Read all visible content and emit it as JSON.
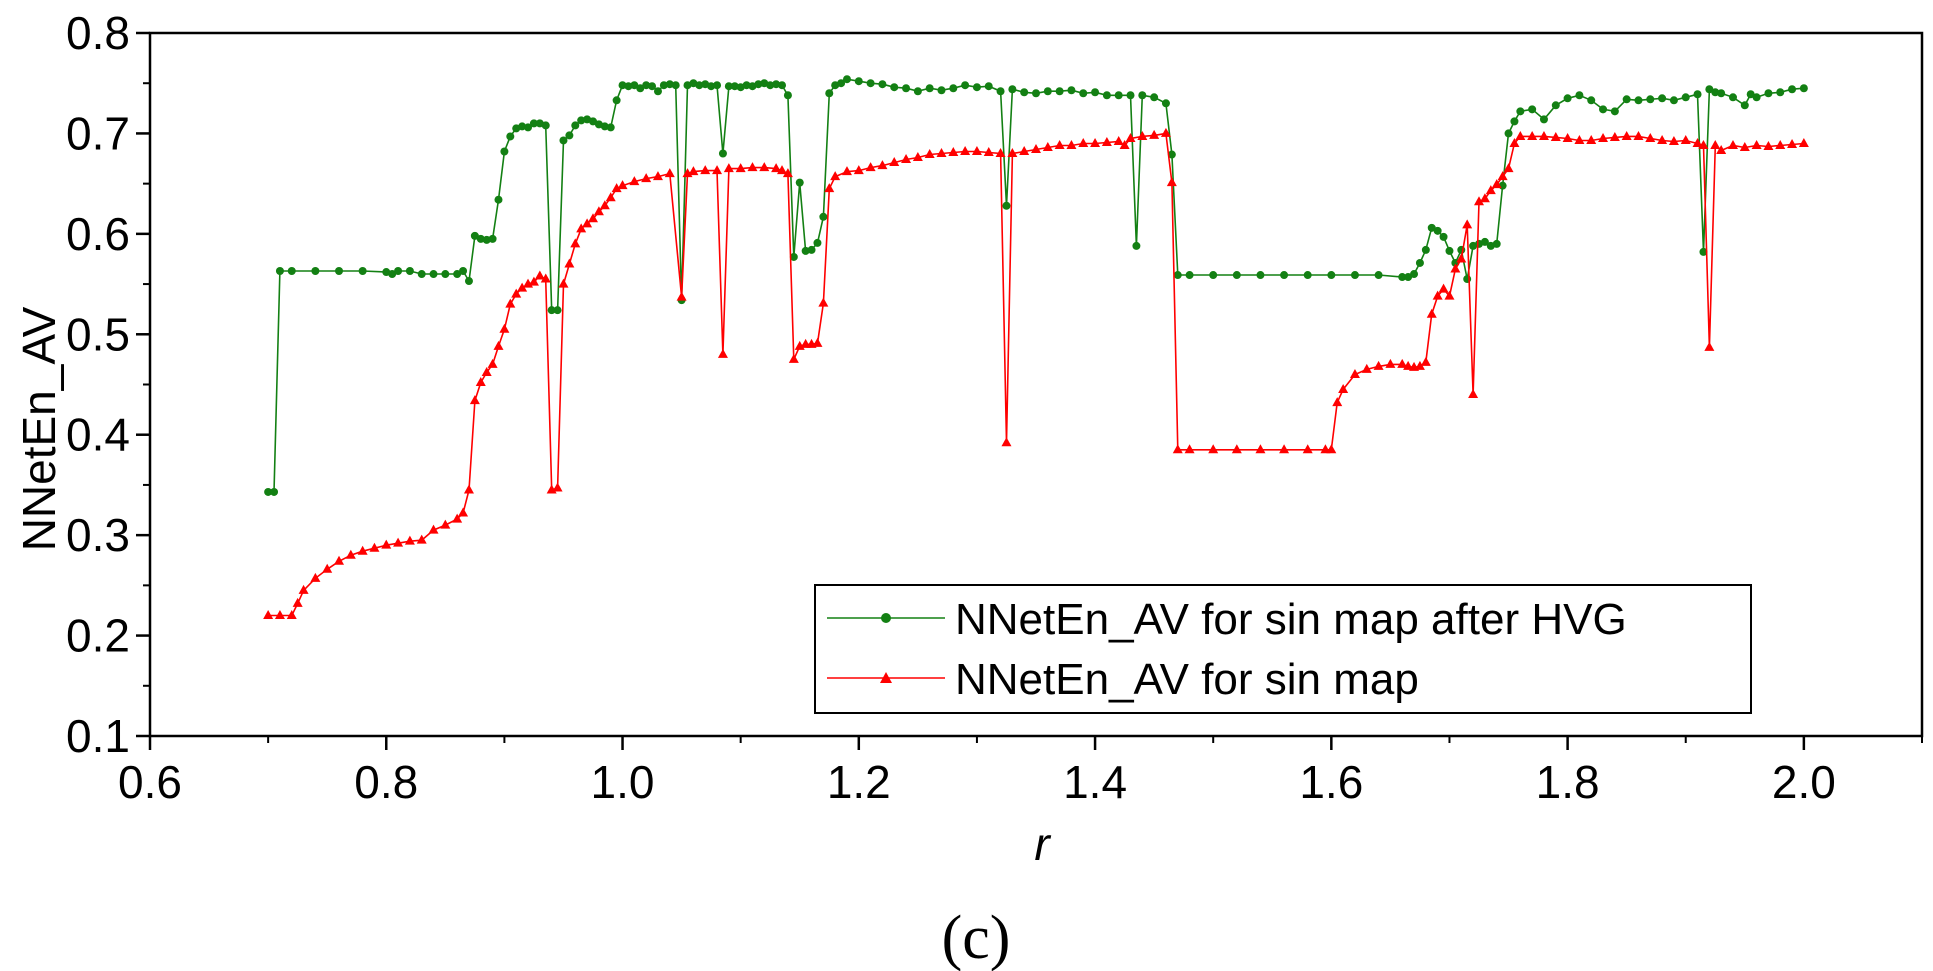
{
  "panel_label": "(c)",
  "chart_data": {
    "type": "line",
    "title": "",
    "xlabel": "r",
    "ylabel": "NNetEn_AV",
    "xlim": [
      0.6,
      2.1
    ],
    "ylim": [
      0.1,
      0.8
    ],
    "xticks": [
      "0.6",
      "0.8",
      "1.0",
      "1.2",
      "1.4",
      "1.6",
      "1.8",
      "2.0"
    ],
    "yticks": [
      "0.1",
      "0.2",
      "0.3",
      "0.4",
      "0.5",
      "0.6",
      "0.7",
      "0.8"
    ],
    "legend_position": "lower-right",
    "series": [
      {
        "name": "NNetEn_AV for sin map after HVG",
        "color": "#138013",
        "marker": "circle",
        "x": [
          0.7,
          0.705,
          0.71,
          0.72,
          0.74,
          0.76,
          0.78,
          0.8,
          0.805,
          0.81,
          0.82,
          0.83,
          0.84,
          0.85,
          0.86,
          0.865,
          0.87,
          0.875,
          0.88,
          0.885,
          0.89,
          0.895,
          0.9,
          0.905,
          0.91,
          0.915,
          0.92,
          0.925,
          0.93,
          0.935,
          0.94,
          0.945,
          0.95,
          0.955,
          0.96,
          0.965,
          0.97,
          0.975,
          0.98,
          0.985,
          0.99,
          0.995,
          1.0,
          1.005,
          1.01,
          1.015,
          1.02,
          1.025,
          1.03,
          1.035,
          1.04,
          1.045,
          1.05,
          1.055,
          1.06,
          1.065,
          1.07,
          1.075,
          1.08,
          1.085,
          1.09,
          1.095,
          1.1,
          1.105,
          1.11,
          1.115,
          1.12,
          1.125,
          1.13,
          1.135,
          1.14,
          1.145,
          1.15,
          1.155,
          1.16,
          1.165,
          1.17,
          1.175,
          1.18,
          1.185,
          1.19,
          1.2,
          1.21,
          1.22,
          1.23,
          1.24,
          1.25,
          1.26,
          1.27,
          1.28,
          1.29,
          1.3,
          1.31,
          1.32,
          1.325,
          1.33,
          1.34,
          1.35,
          1.36,
          1.37,
          1.38,
          1.39,
          1.4,
          1.41,
          1.42,
          1.43,
          1.435,
          1.44,
          1.45,
          1.46,
          1.465,
          1.47,
          1.48,
          1.5,
          1.52,
          1.54,
          1.56,
          1.58,
          1.6,
          1.62,
          1.64,
          1.66,
          1.665,
          1.67,
          1.675,
          1.68,
          1.685,
          1.69,
          1.695,
          1.7,
          1.705,
          1.71,
          1.715,
          1.72,
          1.725,
          1.73,
          1.735,
          1.74,
          1.745,
          1.75,
          1.755,
          1.76,
          1.77,
          1.78,
          1.79,
          1.8,
          1.81,
          1.82,
          1.83,
          1.84,
          1.85,
          1.86,
          1.87,
          1.88,
          1.89,
          1.9,
          1.91,
          1.915,
          1.92,
          1.925,
          1.93,
          1.94,
          1.95,
          1.955,
          1.96,
          1.97,
          1.98,
          1.99,
          2.0
        ],
        "y": [
          0.343,
          0.343,
          0.563,
          0.563,
          0.563,
          0.563,
          0.563,
          0.562,
          0.56,
          0.563,
          0.563,
          0.56,
          0.56,
          0.56,
          0.56,
          0.563,
          0.553,
          0.598,
          0.595,
          0.594,
          0.595,
          0.634,
          0.682,
          0.697,
          0.705,
          0.707,
          0.706,
          0.71,
          0.71,
          0.708,
          0.524,
          0.524,
          0.693,
          0.698,
          0.708,
          0.713,
          0.714,
          0.712,
          0.709,
          0.707,
          0.706,
          0.733,
          0.748,
          0.747,
          0.748,
          0.745,
          0.748,
          0.747,
          0.742,
          0.748,
          0.749,
          0.748,
          0.534,
          0.748,
          0.75,
          0.748,
          0.749,
          0.747,
          0.748,
          0.68,
          0.747,
          0.747,
          0.746,
          0.748,
          0.747,
          0.749,
          0.75,
          0.748,
          0.749,
          0.748,
          0.738,
          0.577,
          0.651,
          0.583,
          0.584,
          0.591,
          0.617,
          0.74,
          0.748,
          0.75,
          0.754,
          0.752,
          0.75,
          0.749,
          0.746,
          0.745,
          0.742,
          0.745,
          0.743,
          0.745,
          0.748,
          0.746,
          0.747,
          0.742,
          0.628,
          0.744,
          0.741,
          0.74,
          0.742,
          0.742,
          0.743,
          0.74,
          0.741,
          0.738,
          0.738,
          0.738,
          0.588,
          0.738,
          0.736,
          0.73,
          0.679,
          0.559,
          0.559,
          0.559,
          0.559,
          0.559,
          0.559,
          0.559,
          0.559,
          0.559,
          0.559,
          0.557,
          0.557,
          0.56,
          0.571,
          0.584,
          0.606,
          0.603,
          0.597,
          0.583,
          0.571,
          0.584,
          0.555,
          0.588,
          0.59,
          0.592,
          0.588,
          0.59,
          0.648,
          0.7,
          0.712,
          0.722,
          0.724,
          0.714,
          0.728,
          0.735,
          0.738,
          0.733,
          0.724,
          0.722,
          0.734,
          0.733,
          0.734,
          0.735,
          0.733,
          0.736,
          0.739,
          0.582,
          0.744,
          0.741,
          0.74,
          0.736,
          0.728,
          0.739,
          0.736,
          0.74,
          0.741,
          0.744,
          0.745
        ]
      },
      {
        "name": "NNetEn_AV for sin map",
        "color": "#ff0000",
        "marker": "triangle",
        "x": [
          0.7,
          0.71,
          0.72,
          0.725,
          0.73,
          0.74,
          0.75,
          0.76,
          0.77,
          0.78,
          0.79,
          0.8,
          0.81,
          0.82,
          0.83,
          0.84,
          0.85,
          0.86,
          0.865,
          0.87,
          0.875,
          0.88,
          0.885,
          0.89,
          0.895,
          0.9,
          0.905,
          0.91,
          0.915,
          0.92,
          0.925,
          0.93,
          0.935,
          0.94,
          0.945,
          0.95,
          0.955,
          0.96,
          0.965,
          0.97,
          0.975,
          0.98,
          0.985,
          0.99,
          0.995,
          1.0,
          1.01,
          1.02,
          1.03,
          1.04,
          1.05,
          1.055,
          1.06,
          1.07,
          1.08,
          1.085,
          1.09,
          1.1,
          1.11,
          1.12,
          1.13,
          1.135,
          1.14,
          1.145,
          1.15,
          1.155,
          1.16,
          1.165,
          1.17,
          1.175,
          1.18,
          1.19,
          1.2,
          1.21,
          1.22,
          1.23,
          1.24,
          1.25,
          1.26,
          1.27,
          1.28,
          1.29,
          1.3,
          1.31,
          1.32,
          1.325,
          1.33,
          1.34,
          1.35,
          1.36,
          1.37,
          1.38,
          1.39,
          1.4,
          1.41,
          1.42,
          1.425,
          1.43,
          1.44,
          1.45,
          1.46,
          1.465,
          1.47,
          1.48,
          1.5,
          1.52,
          1.54,
          1.56,
          1.58,
          1.595,
          1.6,
          1.605,
          1.61,
          1.62,
          1.63,
          1.64,
          1.65,
          1.66,
          1.665,
          1.67,
          1.675,
          1.68,
          1.685,
          1.69,
          1.695,
          1.7,
          1.705,
          1.71,
          1.715,
          1.72,
          1.725,
          1.73,
          1.735,
          1.74,
          1.745,
          1.75,
          1.755,
          1.76,
          1.77,
          1.78,
          1.79,
          1.8,
          1.81,
          1.82,
          1.83,
          1.84,
          1.85,
          1.86,
          1.87,
          1.88,
          1.89,
          1.9,
          1.91,
          1.915,
          1.92,
          1.925,
          1.93,
          1.94,
          1.95,
          1.96,
          1.97,
          1.98,
          1.99,
          2.0
        ],
        "y": [
          0.22,
          0.22,
          0.22,
          0.232,
          0.245,
          0.257,
          0.266,
          0.274,
          0.28,
          0.284,
          0.287,
          0.29,
          0.292,
          0.294,
          0.295,
          0.305,
          0.31,
          0.316,
          0.322,
          0.345,
          0.434,
          0.452,
          0.462,
          0.47,
          0.488,
          0.505,
          0.53,
          0.54,
          0.546,
          0.55,
          0.552,
          0.558,
          0.555,
          0.345,
          0.347,
          0.55,
          0.57,
          0.59,
          0.605,
          0.61,
          0.615,
          0.622,
          0.628,
          0.636,
          0.645,
          0.648,
          0.652,
          0.655,
          0.657,
          0.66,
          0.537,
          0.66,
          0.662,
          0.663,
          0.663,
          0.48,
          0.665,
          0.665,
          0.666,
          0.666,
          0.665,
          0.663,
          0.66,
          0.475,
          0.488,
          0.49,
          0.49,
          0.491,
          0.531,
          0.645,
          0.657,
          0.662,
          0.663,
          0.666,
          0.668,
          0.671,
          0.674,
          0.676,
          0.679,
          0.68,
          0.681,
          0.682,
          0.682,
          0.681,
          0.68,
          0.392,
          0.68,
          0.682,
          0.684,
          0.686,
          0.688,
          0.688,
          0.69,
          0.69,
          0.691,
          0.692,
          0.688,
          0.695,
          0.697,
          0.698,
          0.7,
          0.651,
          0.385,
          0.385,
          0.385,
          0.385,
          0.385,
          0.385,
          0.385,
          0.385,
          0.385,
          0.432,
          0.445,
          0.46,
          0.465,
          0.468,
          0.47,
          0.47,
          0.468,
          0.467,
          0.468,
          0.472,
          0.52,
          0.538,
          0.545,
          0.538,
          0.565,
          0.575,
          0.609,
          0.44,
          0.632,
          0.635,
          0.643,
          0.649,
          0.657,
          0.665,
          0.69,
          0.697,
          0.697,
          0.697,
          0.696,
          0.695,
          0.693,
          0.693,
          0.695,
          0.696,
          0.697,
          0.697,
          0.695,
          0.693,
          0.692,
          0.693,
          0.69,
          0.688,
          0.487,
          0.688,
          0.683,
          0.688,
          0.686,
          0.688,
          0.687,
          0.688,
          0.689,
          0.69
        ]
      }
    ]
  }
}
